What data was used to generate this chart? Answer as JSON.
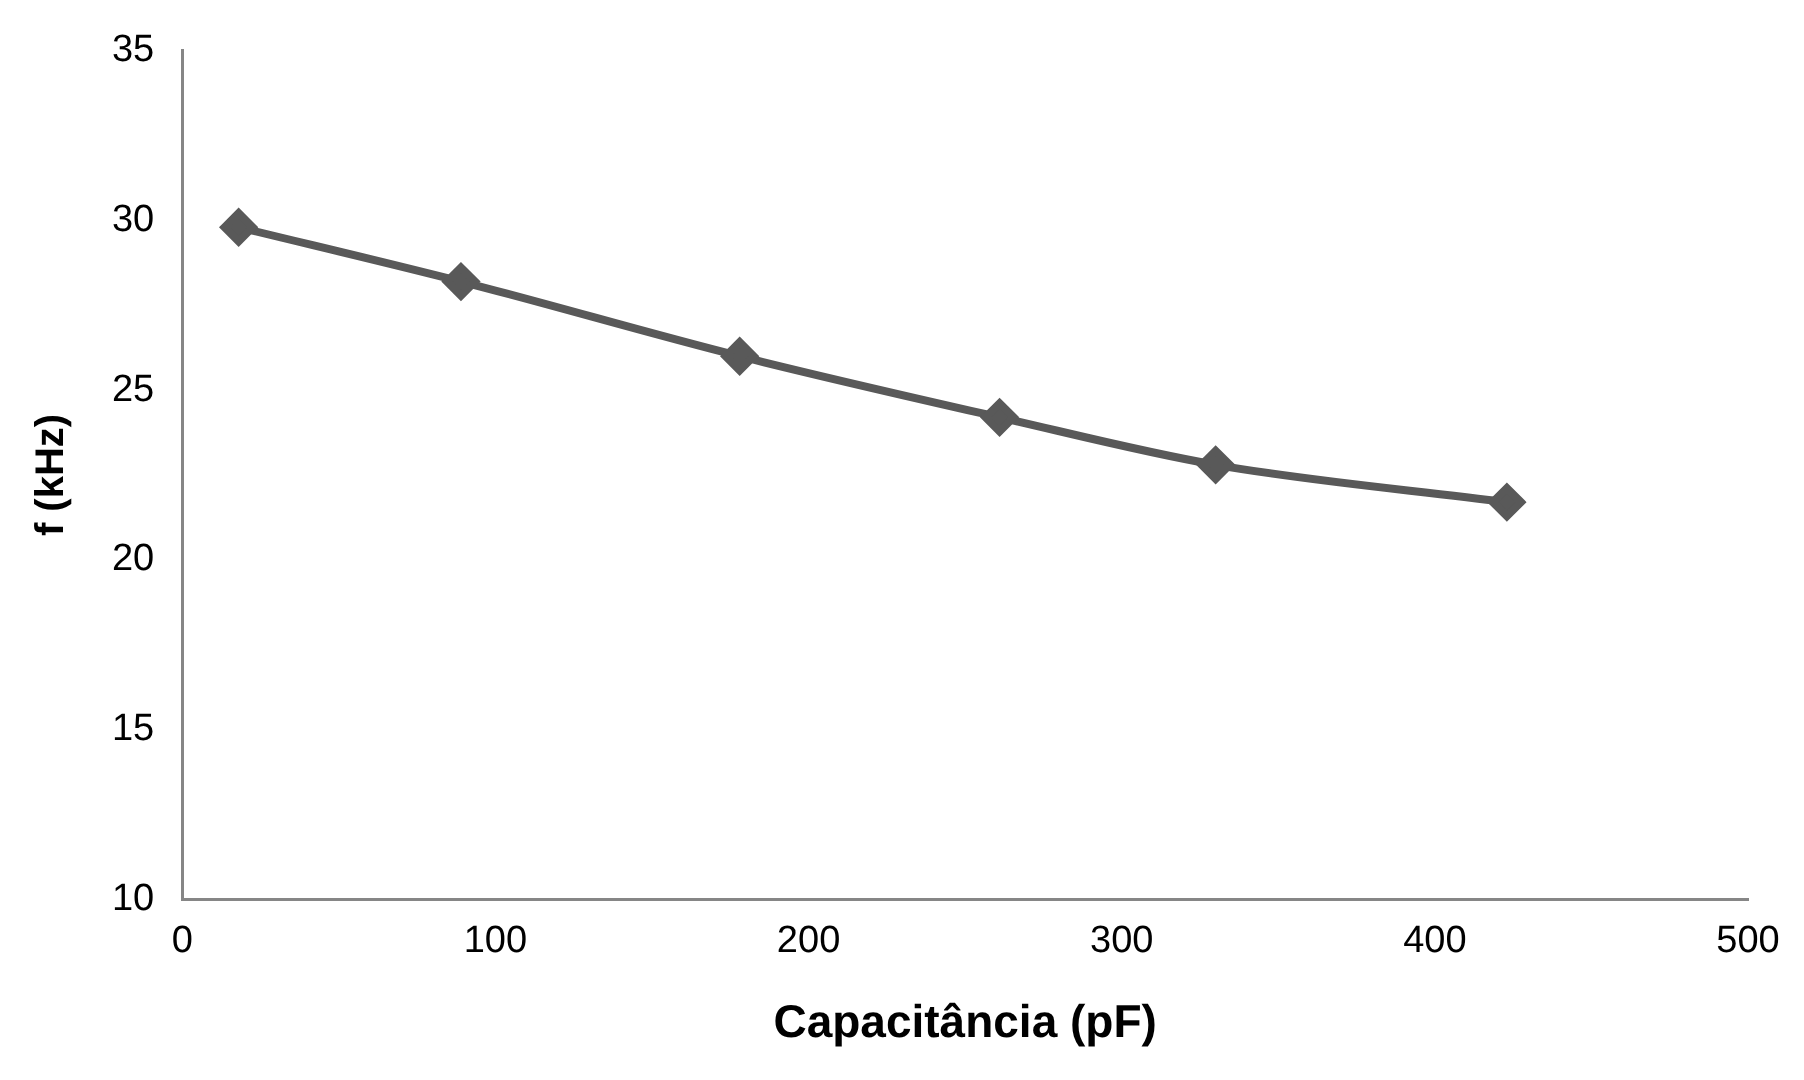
{
  "chart_data": {
    "type": "line",
    "xlabel": "Capacitância (pF)",
    "ylabel": "f (kHz)",
    "x": [
      18,
      89,
      178,
      261,
      330,
      423
    ],
    "series": [
      {
        "color": "#595959",
        "values": [
          29.8,
          28.2,
          26.0,
          24.2,
          22.8,
          21.7
        ]
      }
    ],
    "xlim": [
      0,
      500
    ],
    "xticks": [
      0,
      100,
      200,
      300,
      400,
      500
    ],
    "ylim": [
      10,
      35
    ],
    "yticks": [
      10,
      15,
      20,
      25,
      30,
      35
    ],
    "grid": false,
    "legend": false,
    "marker": "diamond",
    "line_style": "solid"
  }
}
